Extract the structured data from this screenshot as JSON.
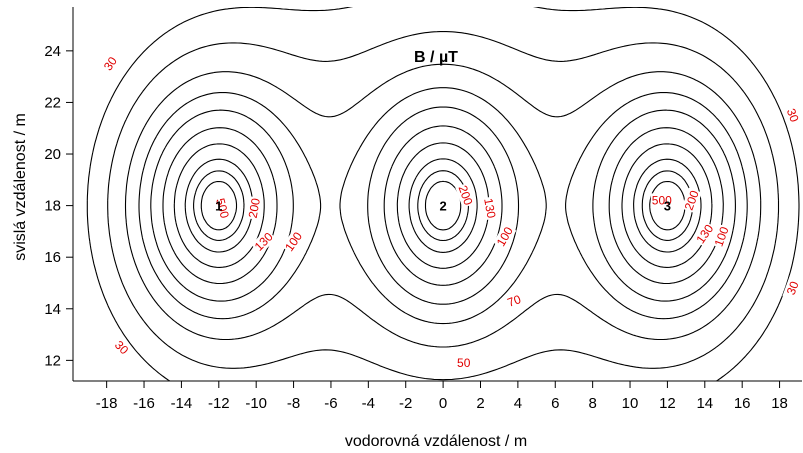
{
  "chart_data": {
    "type": "contour",
    "title": "B / µT",
    "xlabel": "vodorovná vzdálenost / m",
    "ylabel": "svislá vzdálenost / m",
    "xlim": [
      -19.8,
      19.2
    ],
    "ylim": [
      11.2,
      25.7
    ],
    "x_ticks": [
      -18,
      -16,
      -14,
      -12,
      -10,
      -8,
      -6,
      -4,
      -2,
      0,
      2,
      4,
      6,
      8,
      10,
      12,
      14,
      16,
      18
    ],
    "y_ticks": [
      12,
      14,
      16,
      18,
      20,
      22,
      24
    ],
    "sources": [
      {
        "label": "1",
        "x": -12,
        "y": 18
      },
      {
        "label": "2",
        "x": 0,
        "y": 18
      },
      {
        "label": "3",
        "x": 12,
        "y": 18
      }
    ],
    "contour_levels": [
      30,
      50,
      70,
      100,
      130,
      200,
      500
    ],
    "contour_labels": [
      {
        "text": "30",
        "x": -17.8,
        "y": 23.5,
        "angle": -55
      },
      {
        "text": "30",
        "x": -17.2,
        "y": 12.5,
        "angle": 45
      },
      {
        "text": "30",
        "x": 18.7,
        "y": 21.5,
        "angle": 70
      },
      {
        "text": "30",
        "x": 18.7,
        "y": 14.8,
        "angle": -70
      },
      {
        "text": "50",
        "x": 1.1,
        "y": 11.9,
        "angle": 0
      },
      {
        "text": "70",
        "x": 3.8,
        "y": 14.3,
        "angle": -20
      },
      {
        "text": "500",
        "x": -11.8,
        "y": 17.9,
        "angle": 75
      },
      {
        "text": "200",
        "x": -10.1,
        "y": 17.9,
        "angle": -80
      },
      {
        "text": "130",
        "x": -9.6,
        "y": 16.6,
        "angle": -45
      },
      {
        "text": "100",
        "x": -8.0,
        "y": 16.6,
        "angle": -55
      },
      {
        "text": "200",
        "x": 1.2,
        "y": 18.4,
        "angle": 70
      },
      {
        "text": "130",
        "x": 2.5,
        "y": 17.9,
        "angle": 80
      },
      {
        "text": "100",
        "x": 3.3,
        "y": 16.8,
        "angle": -60
      },
      {
        "text": "500",
        "x": 11.7,
        "y": 18.2,
        "angle": 0
      },
      {
        "text": "200",
        "x": 13.3,
        "y": 18.2,
        "angle": -70
      },
      {
        "text": "130",
        "x": 14.0,
        "y": 16.9,
        "angle": -55
      },
      {
        "text": "100",
        "x": 14.9,
        "y": 16.8,
        "angle": -70
      }
    ]
  }
}
